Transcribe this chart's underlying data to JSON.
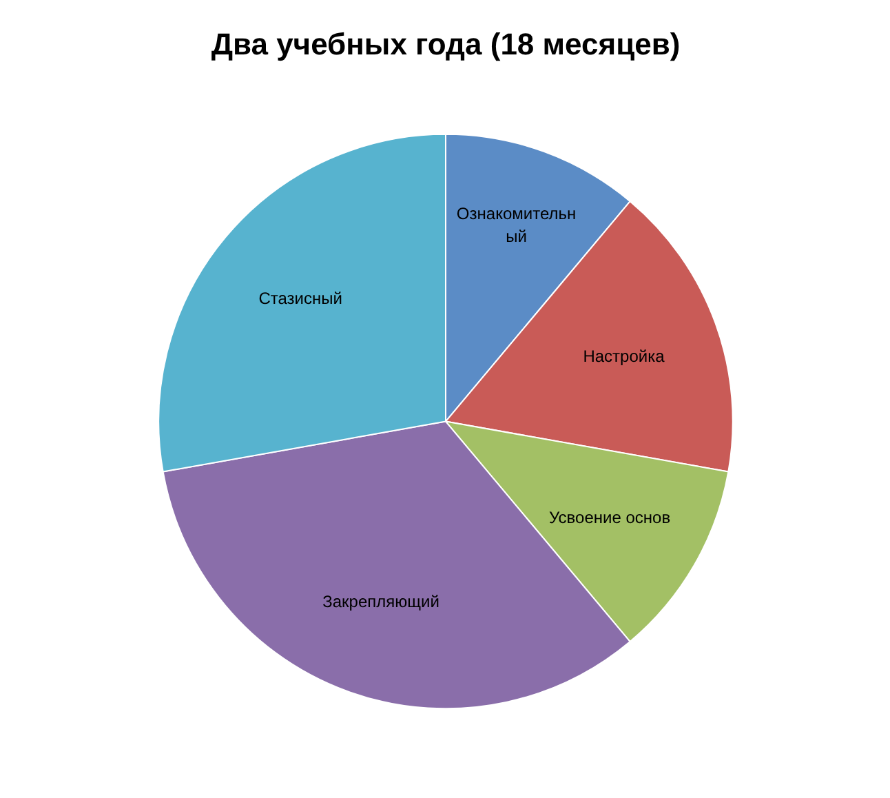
{
  "chart_data": {
    "type": "pie",
    "title": "Два учебных года (18 месяцев)",
    "categories": [
      "Ознакомительный",
      "Настройка",
      "Усвоение основ",
      "Закрепляющий",
      "Стазисный"
    ],
    "values": [
      11.1,
      16.7,
      11.1,
      33.3,
      27.8
    ],
    "colors": [
      "#5b8cc6",
      "#c95b57",
      "#a3c065",
      "#8a6eaa",
      "#57b3cf"
    ]
  }
}
